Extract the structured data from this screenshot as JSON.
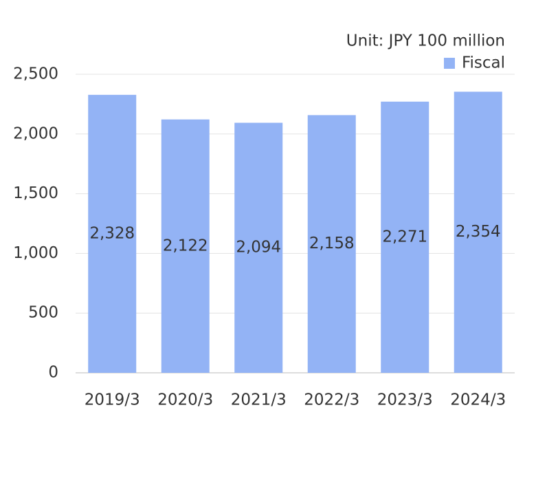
{
  "chart_data": {
    "type": "bar",
    "annotation": "Unit: JPY 100 million",
    "categories": [
      "2019/3",
      "2020/3",
      "2021/3",
      "2022/3",
      "2023/3",
      "2024/3"
    ],
    "series": [
      {
        "name": "Fiscal",
        "color": "#93b3f5",
        "values": [
          2328,
          2122,
          2094,
          2158,
          2271,
          2354
        ],
        "value_labels": [
          "2,328",
          "2,122",
          "2,094",
          "2,158",
          "2,271",
          "2,354"
        ]
      }
    ],
    "ylim": [
      0,
      2500
    ],
    "yticks": [
      0,
      500,
      {
        "value": 1000,
        "label": "1,000"
      },
      {
        "value": 1500,
        "label": "1,500"
      },
      {
        "value": 2000,
        "label": "2,000"
      },
      {
        "value": 2500,
        "label": "2,500"
      }
    ],
    "grid": true,
    "legend": "top-right"
  }
}
